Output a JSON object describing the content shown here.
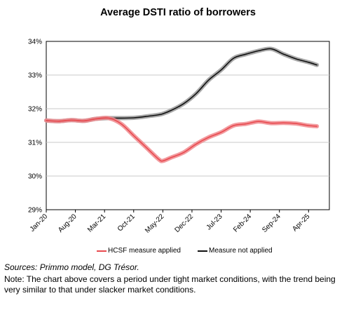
{
  "chart_data": {
    "type": "line",
    "title": "Average DSTI ratio of borrowers",
    "xlabel": "",
    "ylabel": "",
    "x_tick_labels": [
      "Jan-20",
      "Aug-20",
      "Mar-21",
      "Oct-21",
      "May-22",
      "Dec-22",
      "Jul-23",
      "Feb-24",
      "Sep-24",
      "Apr-25"
    ],
    "y_tick_labels": [
      "29%",
      "30%",
      "31%",
      "32%",
      "33%",
      "34%"
    ],
    "ylim": [
      29,
      34
    ],
    "y_unit": "%",
    "x": [
      "2020-01",
      "2020-04",
      "2020-07",
      "2020-10",
      "2021-01",
      "2021-04",
      "2021-07",
      "2021-10",
      "2022-01",
      "2022-04",
      "2022-05",
      "2022-07",
      "2022-10",
      "2023-01",
      "2023-04",
      "2023-07",
      "2023-10",
      "2024-01",
      "2024-04",
      "2024-07",
      "2024-10",
      "2025-01",
      "2025-04",
      "2025-06"
    ],
    "grid": "horizontal",
    "legend_position": "bottom",
    "series": [
      {
        "name": "HCSF measure applied",
        "color": "#e84a4f",
        "values": [
          31.65,
          31.63,
          31.66,
          31.64,
          31.7,
          31.72,
          31.55,
          31.2,
          30.85,
          30.5,
          30.45,
          30.55,
          30.7,
          30.95,
          31.15,
          31.3,
          31.5,
          31.55,
          31.62,
          31.57,
          31.58,
          31.56,
          31.5,
          31.48
        ]
      },
      {
        "name": "Measure not applied",
        "color": "#111111",
        "values": [
          31.65,
          31.63,
          31.66,
          31.64,
          31.7,
          31.72,
          31.72,
          31.73,
          31.77,
          31.82,
          31.85,
          31.95,
          32.15,
          32.45,
          32.85,
          33.15,
          33.5,
          33.62,
          33.72,
          33.78,
          33.62,
          33.48,
          33.38,
          33.3
        ]
      }
    ]
  },
  "legend": {
    "items": [
      "HCSF measure applied",
      "Measure not applied"
    ]
  },
  "sources": "Sources: Primmo model, DG Trésor.",
  "note": "Note: The chart above covers a period under tight market conditions, with the trend being very similar to that under slacker market conditions."
}
